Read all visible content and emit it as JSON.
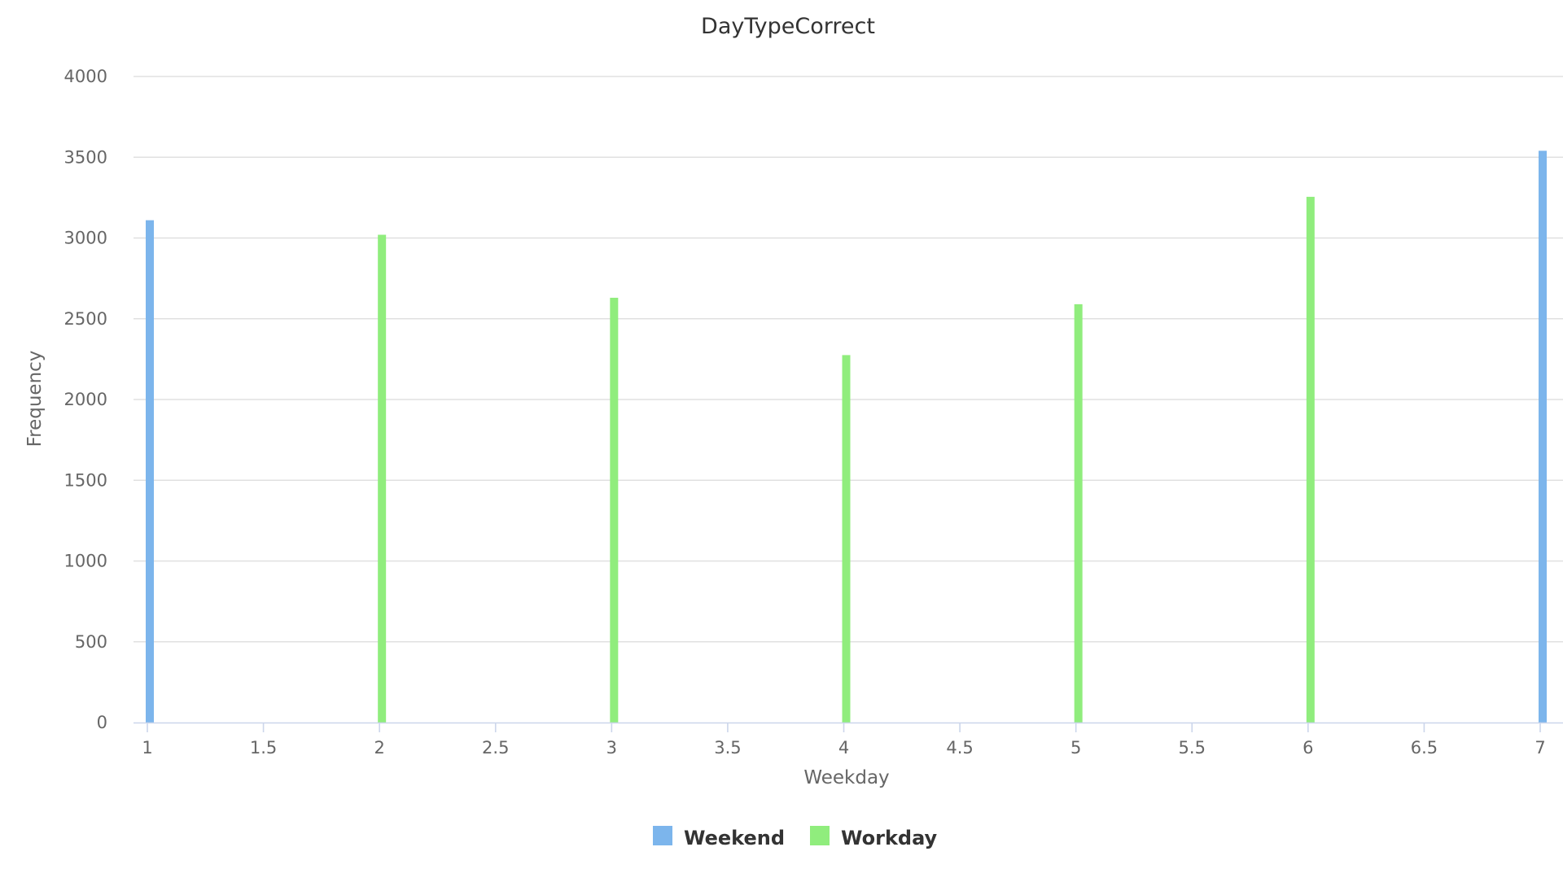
{
  "chart_data": {
    "type": "bar",
    "title": "DayTypeCorrect",
    "xlabel": "Weekday",
    "ylabel": "Frequency",
    "xlim": [
      1,
      7
    ],
    "ylim": [
      0,
      4000
    ],
    "x_ticks": [
      "1",
      "1.5",
      "2",
      "2.5",
      "3",
      "3.5",
      "4",
      "4.5",
      "5",
      "5.5",
      "6",
      "6.5",
      "7"
    ],
    "y_ticks": [
      "0",
      "500",
      "1000",
      "1500",
      "2000",
      "2500",
      "3000",
      "3500",
      "4000"
    ],
    "grid": true,
    "legend_position": "bottom-center",
    "series": [
      {
        "name": "Weekend",
        "color": "#7cb5ec",
        "points": [
          {
            "x": 1,
            "y": 3110
          },
          {
            "x": 7,
            "y": 3540
          }
        ]
      },
      {
        "name": "Workday",
        "color": "#90ed7d",
        "points": [
          {
            "x": 2,
            "y": 3020
          },
          {
            "x": 3,
            "y": 2630
          },
          {
            "x": 4,
            "y": 2275
          },
          {
            "x": 5,
            "y": 2590
          },
          {
            "x": 6,
            "y": 3255
          }
        ]
      }
    ]
  }
}
